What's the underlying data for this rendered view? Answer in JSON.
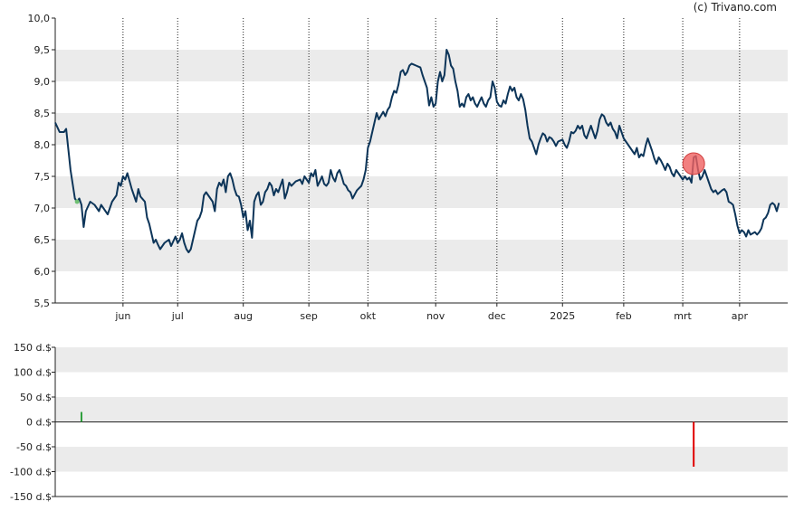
{
  "credit": "(c) Trivano.com",
  "chart_data": [
    {
      "type": "line",
      "ylim": [
        5.5,
        10.0
      ],
      "y_ticks": [
        "10,0",
        "9,5",
        "9,0",
        "8,5",
        "8,0",
        "7,5",
        "7,0",
        "6,5",
        "6,0",
        "5,5"
      ],
      "y_tick_values": [
        10.0,
        9.5,
        9.0,
        8.5,
        8.0,
        7.5,
        7.0,
        6.5,
        6.0,
        5.5
      ],
      "x_ticks": [
        "jun",
        "jul",
        "aug",
        "sep",
        "okt",
        "nov",
        "dec",
        "2025",
        "feb",
        "mrt",
        "apr"
      ],
      "x_tick_index": [
        31,
        56,
        86,
        116,
        143,
        174,
        202,
        232,
        260,
        287,
        313
      ],
      "n_points": 336,
      "grid": "alternating horizontal bands, dotted vertical month lines",
      "line_color": "#0d3559",
      "price_anchors": [
        [
          0,
          8.35
        ],
        [
          2,
          8.2
        ],
        [
          4,
          8.2
        ],
        [
          5,
          8.25
        ],
        [
          7,
          7.6
        ],
        [
          9,
          7.15
        ],
        [
          10,
          7.1
        ],
        [
          11,
          7.15
        ],
        [
          12,
          7.05
        ],
        [
          13,
          6.7
        ],
        [
          14,
          6.95
        ],
        [
          16,
          7.1
        ],
        [
          18,
          7.05
        ],
        [
          20,
          6.95
        ],
        [
          21,
          7.05
        ],
        [
          24,
          6.9
        ],
        [
          25,
          7.0
        ],
        [
          26,
          7.1
        ],
        [
          28,
          7.2
        ],
        [
          29,
          7.4
        ],
        [
          30,
          7.35
        ],
        [
          31,
          7.5
        ],
        [
          32,
          7.45
        ],
        [
          33,
          7.55
        ],
        [
          35,
          7.3
        ],
        [
          37,
          7.1
        ],
        [
          38,
          7.3
        ],
        [
          39,
          7.18
        ],
        [
          41,
          7.1
        ],
        [
          42,
          6.85
        ],
        [
          43,
          6.75
        ],
        [
          44,
          6.6
        ],
        [
          45,
          6.45
        ],
        [
          46,
          6.5
        ],
        [
          47,
          6.42
        ],
        [
          48,
          6.35
        ],
        [
          50,
          6.45
        ],
        [
          52,
          6.5
        ],
        [
          53,
          6.4
        ],
        [
          55,
          6.55
        ],
        [
          56,
          6.45
        ],
        [
          57,
          6.5
        ],
        [
          58,
          6.6
        ],
        [
          59,
          6.45
        ],
        [
          60,
          6.35
        ],
        [
          61,
          6.3
        ],
        [
          62,
          6.35
        ],
        [
          64,
          6.65
        ],
        [
          65,
          6.8
        ],
        [
          66,
          6.85
        ],
        [
          67,
          6.95
        ],
        [
          68,
          7.2
        ],
        [
          69,
          7.25
        ],
        [
          70,
          7.2
        ],
        [
          72,
          7.1
        ],
        [
          73,
          6.95
        ],
        [
          74,
          7.3
        ],
        [
          75,
          7.4
        ],
        [
          76,
          7.35
        ],
        [
          77,
          7.45
        ],
        [
          78,
          7.25
        ],
        [
          79,
          7.5
        ],
        [
          80,
          7.55
        ],
        [
          81,
          7.45
        ],
        [
          82,
          7.3
        ],
        [
          83,
          7.2
        ],
        [
          84,
          7.18
        ],
        [
          85,
          7.05
        ],
        [
          86,
          6.85
        ],
        [
          87,
          6.95
        ],
        [
          88,
          6.65
        ],
        [
          89,
          6.8
        ],
        [
          90,
          6.53
        ],
        [
          91,
          7.1
        ],
        [
          92,
          7.2
        ],
        [
          93,
          7.25
        ],
        [
          94,
          7.05
        ],
        [
          95,
          7.1
        ],
        [
          96,
          7.25
        ],
        [
          97,
          7.3
        ],
        [
          98,
          7.4
        ],
        [
          99,
          7.35
        ],
        [
          100,
          7.2
        ],
        [
          101,
          7.3
        ],
        [
          102,
          7.25
        ],
        [
          103,
          7.35
        ],
        [
          104,
          7.45
        ],
        [
          105,
          7.15
        ],
        [
          106,
          7.25
        ],
        [
          107,
          7.4
        ],
        [
          108,
          7.35
        ],
        [
          110,
          7.42
        ],
        [
          112,
          7.45
        ],
        [
          113,
          7.38
        ],
        [
          114,
          7.5
        ],
        [
          116,
          7.4
        ],
        [
          117,
          7.55
        ],
        [
          118,
          7.5
        ],
        [
          119,
          7.6
        ],
        [
          120,
          7.35
        ],
        [
          121,
          7.42
        ],
        [
          122,
          7.5
        ],
        [
          123,
          7.38
        ],
        [
          124,
          7.35
        ],
        [
          125,
          7.4
        ],
        [
          126,
          7.6
        ],
        [
          127,
          7.48
        ],
        [
          128,
          7.42
        ],
        [
          129,
          7.55
        ],
        [
          130,
          7.6
        ],
        [
          131,
          7.5
        ],
        [
          132,
          7.38
        ],
        [
          133,
          7.35
        ],
        [
          134,
          7.28
        ],
        [
          135,
          7.25
        ],
        [
          136,
          7.15
        ],
        [
          138,
          7.28
        ],
        [
          140,
          7.35
        ],
        [
          141,
          7.45
        ],
        [
          142,
          7.6
        ],
        [
          143,
          7.95
        ],
        [
          144,
          8.05
        ],
        [
          145,
          8.2
        ],
        [
          146,
          8.35
        ],
        [
          147,
          8.5
        ],
        [
          148,
          8.4
        ],
        [
          150,
          8.52
        ],
        [
          151,
          8.45
        ],
        [
          152,
          8.55
        ],
        [
          153,
          8.6
        ],
        [
          154,
          8.75
        ],
        [
          155,
          8.85
        ],
        [
          156,
          8.82
        ],
        [
          157,
          8.95
        ],
        [
          158,
          9.15
        ],
        [
          159,
          9.18
        ],
        [
          160,
          9.1
        ],
        [
          161,
          9.15
        ],
        [
          162,
          9.25
        ],
        [
          163,
          9.28
        ],
        [
          165,
          9.25
        ],
        [
          167,
          9.22
        ],
        [
          168,
          9.1
        ],
        [
          169,
          9.0
        ],
        [
          170,
          8.9
        ],
        [
          171,
          8.62
        ],
        [
          172,
          8.75
        ],
        [
          173,
          8.6
        ],
        [
          174,
          8.65
        ],
        [
          175,
          9.0
        ],
        [
          176,
          9.15
        ],
        [
          177,
          9.0
        ],
        [
          178,
          9.1
        ],
        [
          179,
          9.5
        ],
        [
          180,
          9.42
        ],
        [
          181,
          9.25
        ],
        [
          182,
          9.2
        ],
        [
          183,
          9.0
        ],
        [
          184,
          8.85
        ],
        [
          185,
          8.6
        ],
        [
          186,
          8.65
        ],
        [
          187,
          8.6
        ],
        [
          188,
          8.75
        ],
        [
          189,
          8.8
        ],
        [
          190,
          8.7
        ],
        [
          191,
          8.75
        ],
        [
          192,
          8.65
        ],
        [
          193,
          8.6
        ],
        [
          194,
          8.68
        ],
        [
          195,
          8.75
        ],
        [
          196,
          8.65
        ],
        [
          197,
          8.6
        ],
        [
          198,
          8.7
        ],
        [
          199,
          8.75
        ],
        [
          200,
          9.0
        ],
        [
          201,
          8.9
        ],
        [
          202,
          8.68
        ],
        [
          203,
          8.62
        ],
        [
          204,
          8.6
        ],
        [
          205,
          8.7
        ],
        [
          206,
          8.65
        ],
        [
          207,
          8.8
        ],
        [
          208,
          8.92
        ],
        [
          209,
          8.85
        ],
        [
          210,
          8.9
        ],
        [
          211,
          8.75
        ],
        [
          212,
          8.7
        ],
        [
          213,
          8.8
        ],
        [
          214,
          8.72
        ],
        [
          215,
          8.55
        ],
        [
          216,
          8.3
        ],
        [
          217,
          8.1
        ],
        [
          218,
          8.05
        ],
        [
          219,
          7.95
        ],
        [
          220,
          7.85
        ],
        [
          221,
          8.0
        ],
        [
          222,
          8.1
        ],
        [
          223,
          8.18
        ],
        [
          224,
          8.15
        ],
        [
          225,
          8.05
        ],
        [
          226,
          8.12
        ],
        [
          227,
          8.1
        ],
        [
          228,
          8.05
        ],
        [
          229,
          7.98
        ],
        [
          230,
          8.05
        ],
        [
          232,
          8.08
        ],
        [
          233,
          8.0
        ],
        [
          234,
          7.95
        ],
        [
          235,
          8.05
        ],
        [
          236,
          8.2
        ],
        [
          237,
          8.18
        ],
        [
          238,
          8.22
        ],
        [
          239,
          8.3
        ],
        [
          240,
          8.25
        ],
        [
          241,
          8.3
        ],
        [
          242,
          8.15
        ],
        [
          243,
          8.1
        ],
        [
          244,
          8.2
        ],
        [
          245,
          8.3
        ],
        [
          246,
          8.2
        ],
        [
          247,
          8.1
        ],
        [
          248,
          8.22
        ],
        [
          249,
          8.4
        ],
        [
          250,
          8.48
        ],
        [
          251,
          8.45
        ],
        [
          252,
          8.35
        ],
        [
          253,
          8.3
        ],
        [
          254,
          8.35
        ],
        [
          255,
          8.25
        ],
        [
          256,
          8.2
        ],
        [
          257,
          8.1
        ],
        [
          258,
          8.3
        ],
        [
          259,
          8.2
        ],
        [
          260,
          8.1
        ],
        [
          261,
          8.05
        ],
        [
          262,
          8.0
        ],
        [
          263,
          7.95
        ],
        [
          264,
          7.9
        ],
        [
          265,
          7.85
        ],
        [
          266,
          7.95
        ],
        [
          267,
          7.8
        ],
        [
          268,
          7.85
        ],
        [
          269,
          7.82
        ],
        [
          270,
          7.98
        ],
        [
          271,
          8.1
        ],
        [
          272,
          8.0
        ],
        [
          273,
          7.9
        ],
        [
          274,
          7.78
        ],
        [
          275,
          7.7
        ],
        [
          276,
          7.8
        ],
        [
          277,
          7.75
        ],
        [
          278,
          7.68
        ],
        [
          279,
          7.6
        ],
        [
          280,
          7.7
        ],
        [
          281,
          7.65
        ],
        [
          282,
          7.55
        ],
        [
          283,
          7.5
        ],
        [
          284,
          7.6
        ],
        [
          285,
          7.55
        ],
        [
          286,
          7.5
        ],
        [
          287,
          7.45
        ],
        [
          288,
          7.5
        ],
        [
          289,
          7.45
        ],
        [
          290,
          7.48
        ],
        [
          291,
          7.4
        ],
        [
          292,
          7.8
        ],
        [
          293,
          7.82
        ],
        [
          294,
          7.6
        ],
        [
          295,
          7.45
        ],
        [
          296,
          7.5
        ],
        [
          297,
          7.6
        ],
        [
          298,
          7.5
        ],
        [
          299,
          7.4
        ],
        [
          300,
          7.3
        ],
        [
          301,
          7.25
        ],
        [
          302,
          7.28
        ],
        [
          303,
          7.22
        ],
        [
          304,
          7.25
        ],
        [
          305,
          7.28
        ],
        [
          306,
          7.3
        ],
        [
          307,
          7.25
        ],
        [
          308,
          7.1
        ],
        [
          309,
          7.08
        ],
        [
          310,
          7.05
        ],
        [
          311,
          6.9
        ],
        [
          312,
          6.72
        ],
        [
          313,
          6.6
        ],
        [
          314,
          6.65
        ],
        [
          315,
          6.62
        ],
        [
          316,
          6.55
        ],
        [
          317,
          6.65
        ],
        [
          318,
          6.58
        ],
        [
          319,
          6.6
        ],
        [
          320,
          6.62
        ],
        [
          321,
          6.58
        ],
        [
          322,
          6.62
        ],
        [
          323,
          6.68
        ],
        [
          324,
          6.82
        ],
        [
          325,
          6.85
        ],
        [
          326,
          6.92
        ],
        [
          327,
          7.05
        ],
        [
          328,
          7.08
        ],
        [
          329,
          7.05
        ],
        [
          330,
          6.95
        ],
        [
          331,
          7.08
        ]
      ],
      "markers": [
        {
          "kind": "dot",
          "color": "#6fbf73",
          "x": 10,
          "y": 7.1
        },
        {
          "kind": "circle",
          "color": "#ef6060",
          "x": 292,
          "y": 7.7
        }
      ]
    },
    {
      "type": "bar",
      "ylim": [
        -150,
        150
      ],
      "y_ticks": [
        "150 d.$",
        "100 d.$",
        "50 d.$",
        "0 d.$",
        "-50 d.$",
        "-100 d.$",
        "-150 d.$"
      ],
      "y_tick_values": [
        150,
        100,
        50,
        0,
        -50,
        -100,
        -150
      ],
      "grid": "alternating horizontal bands",
      "bars": [
        {
          "x": 12,
          "value": 20,
          "color": "#2e9e3c"
        },
        {
          "x": 292,
          "value": -90,
          "color": "#e00000"
        }
      ]
    }
  ]
}
